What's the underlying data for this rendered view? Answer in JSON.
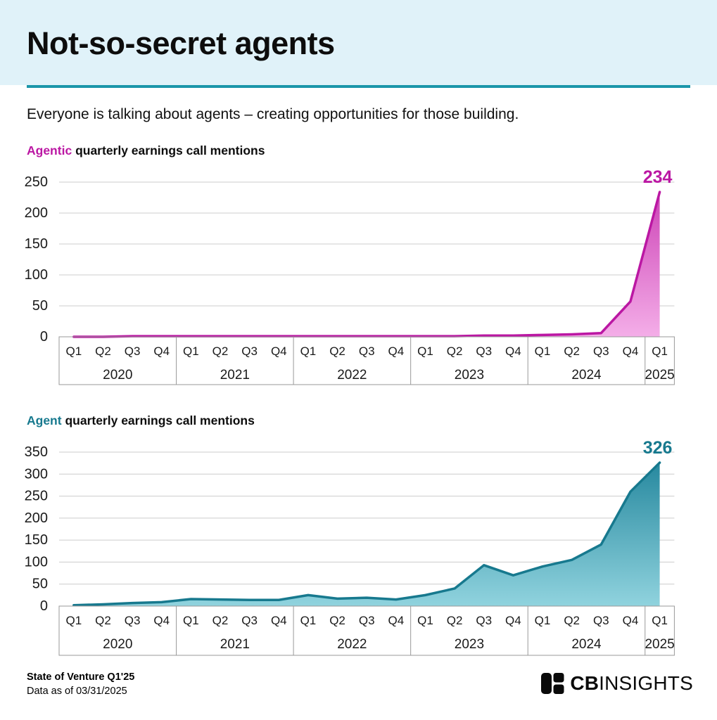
{
  "header": {
    "title": "Not-so-secret agents"
  },
  "subtitle": "Everyone is talking about agents – creating opportunities for those building.",
  "chart_data": [
    {
      "type": "area",
      "title_accent": "Agentic",
      "title_rest": "quarterly earnings call mentions",
      "title": "Agentic quarterly earnings call mentions",
      "ylabel": "",
      "xlabel": "",
      "ylim": [
        0,
        250
      ],
      "ytick_step": 50,
      "grid": true,
      "legend": "none",
      "years": [
        {
          "label": "2020",
          "quarters": [
            "Q1",
            "Q2",
            "Q3",
            "Q4"
          ]
        },
        {
          "label": "2021",
          "quarters": [
            "Q1",
            "Q2",
            "Q3",
            "Q4"
          ]
        },
        {
          "label": "2022",
          "quarters": [
            "Q1",
            "Q2",
            "Q3",
            "Q4"
          ]
        },
        {
          "label": "2023",
          "quarters": [
            "Q1",
            "Q2",
            "Q3",
            "Q4"
          ]
        },
        {
          "label": "2024",
          "quarters": [
            "Q1",
            "Q2",
            "Q3",
            "Q4"
          ]
        },
        {
          "label": "2025",
          "quarters": [
            "Q1"
          ]
        }
      ],
      "values": [
        0,
        0,
        1,
        1,
        1,
        1,
        1,
        1,
        1,
        1,
        1,
        1,
        1,
        1,
        2,
        2,
        3,
        4,
        6,
        57,
        234
      ],
      "peak_label": "234",
      "colors": {
        "line": "#bb17a3",
        "fill_top": "#ca3cb3",
        "fill_bottom": "#f4aee8",
        "label": "#bb17a3"
      }
    },
    {
      "type": "area",
      "title_accent": "Agent",
      "title_rest": "quarterly earnings call mentions",
      "title": "Agent quarterly earnings call mentions",
      "ylabel": "",
      "xlabel": "",
      "ylim": [
        0,
        350
      ],
      "ytick_step": 50,
      "grid": true,
      "legend": "none",
      "years": [
        {
          "label": "2020",
          "quarters": [
            "Q1",
            "Q2",
            "Q3",
            "Q4"
          ]
        },
        {
          "label": "2021",
          "quarters": [
            "Q1",
            "Q2",
            "Q3",
            "Q4"
          ]
        },
        {
          "label": "2022",
          "quarters": [
            "Q1",
            "Q2",
            "Q3",
            "Q4"
          ]
        },
        {
          "label": "2023",
          "quarters": [
            "Q1",
            "Q2",
            "Q3",
            "Q4"
          ]
        },
        {
          "label": "2024",
          "quarters": [
            "Q1",
            "Q2",
            "Q3",
            "Q4"
          ]
        },
        {
          "label": "2025",
          "quarters": [
            "Q1"
          ]
        }
      ],
      "values": [
        2,
        4,
        7,
        9,
        16,
        15,
        14,
        14,
        25,
        17,
        19,
        15,
        25,
        40,
        93,
        70,
        90,
        105,
        140,
        260,
        326
      ],
      "peak_label": "326",
      "colors": {
        "line": "#17798e",
        "fill_top": "#1f839a",
        "fill_bottom": "#90d3de",
        "label": "#17798e"
      }
    }
  ],
  "footer": {
    "report_title": "State of Venture Q1'25",
    "data_as_of": "Data as of 03/31/2025",
    "brand_bold": "CB",
    "brand_light": "INSIGHTS"
  },
  "theme": {
    "header_bg": "#e0f2f9",
    "divider": "#1b96aa",
    "grid_color": "#cccccc",
    "axis_border": "#999999"
  }
}
